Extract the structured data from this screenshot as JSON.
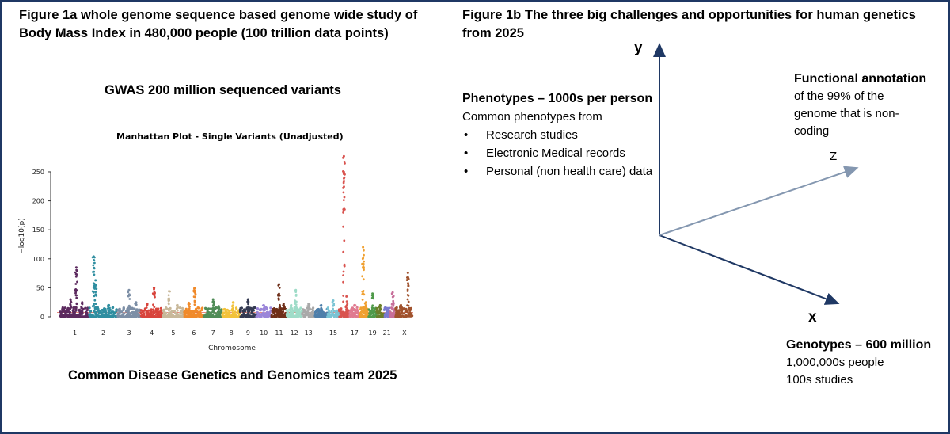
{
  "figure_1a": {
    "title": "Figure 1a whole genome sequence based genome wide study of Body Mass Index in 480,000 people (100 trillion data points)",
    "gwas_heading": "GWAS 200 million sequenced variants",
    "team_caption": "Common Disease Genetics and Genomics team 2025"
  },
  "figure_1b": {
    "title": "Figure 1b The three big challenges and opportunities for human genetics from 2025",
    "axes": {
      "y": "y",
      "x": "x",
      "z": "Z"
    },
    "phenotypes": {
      "heading": "Phenotypes – 1000s per person",
      "intro": "Common phenotypes from",
      "bullet_glyph": "•",
      "items": [
        "Research studies",
        "Electronic Medical records",
        "Personal (non health care) data"
      ]
    },
    "functional": {
      "heading": "Functional annotation",
      "body": "of the 99% of the genome that is non-coding"
    },
    "genotypes": {
      "heading": "Genotypes – 600 million",
      "line1": "1,000,000s people",
      "line2": "100s studies"
    },
    "colors": {
      "axis_dark": "#1f3864",
      "axis_z": "#8497b0",
      "frame": "#1f3864"
    }
  },
  "chart_data": {
    "type": "scatter",
    "title": "Manhattan Plot - Single Variants (Unadjusted)",
    "xlabel": "Chromosome",
    "ylabel": "−log10(p)",
    "ylim": [
      0,
      280
    ],
    "y_ticks": [
      0,
      50,
      100,
      150,
      200,
      250
    ],
    "x_tick_labels": [
      "1",
      "2",
      "3",
      "4",
      "5",
      "6",
      "7",
      "8",
      "9",
      "10",
      "11",
      "12",
      "13",
      "15",
      "17",
      "19",
      "21",
      "X"
    ],
    "chromosomes": [
      {
        "chr": "1",
        "color": "#5c2a5f",
        "peaks": [
          [
            0.55,
            85
          ],
          [
            0.35,
            30
          ],
          [
            0.75,
            25
          ]
        ]
      },
      {
        "chr": "2",
        "color": "#2f8ea0",
        "peaks": [
          [
            0.15,
            104
          ],
          [
            0.22,
            63
          ],
          [
            0.7,
            20
          ]
        ]
      },
      {
        "chr": "3",
        "color": "#7d8fa6",
        "peaks": [
          [
            0.5,
            46
          ],
          [
            0.8,
            25
          ]
        ]
      },
      {
        "chr": "4",
        "color": "#d8443c",
        "peaks": [
          [
            0.6,
            50
          ],
          [
            0.3,
            22
          ]
        ]
      },
      {
        "chr": "5",
        "color": "#c8b89a",
        "peaks": [
          [
            0.3,
            44
          ],
          [
            0.7,
            20
          ]
        ]
      },
      {
        "chr": "6",
        "color": "#f08a2a",
        "peaks": [
          [
            0.55,
            49
          ],
          [
            0.25,
            24
          ]
        ]
      },
      {
        "chr": "7",
        "color": "#4f8c57",
        "peaks": [
          [
            0.5,
            30
          ],
          [
            0.8,
            18
          ]
        ]
      },
      {
        "chr": "8",
        "color": "#f2c23a",
        "peaks": [
          [
            0.6,
            25
          ]
        ]
      },
      {
        "chr": "9",
        "color": "#343a52",
        "peaks": [
          [
            0.5,
            30
          ]
        ]
      },
      {
        "chr": "10",
        "color": "#9b86d9",
        "peaks": [
          [
            0.5,
            20
          ]
        ]
      },
      {
        "chr": "11",
        "color": "#6e2e18",
        "peaks": [
          [
            0.5,
            56
          ],
          [
            0.8,
            22
          ]
        ]
      },
      {
        "chr": "12",
        "color": "#9fdcc8",
        "peaks": [
          [
            0.6,
            46
          ],
          [
            0.3,
            20
          ]
        ]
      },
      {
        "chr": "13",
        "color": "#a9a9a9",
        "peaks": [
          [
            0.5,
            22
          ]
        ]
      },
      {
        "chr": "14",
        "color": "#4e7faa",
        "peaks": [
          [
            0.5,
            20
          ]
        ]
      },
      {
        "chr": "15",
        "color": "#7ac4d4",
        "peaks": [
          [
            0.5,
            28
          ]
        ]
      },
      {
        "chr": "16",
        "color": "#d9534f",
        "peaks": [
          [
            0.45,
            277
          ],
          [
            0.7,
            35
          ]
        ]
      },
      {
        "chr": "17",
        "color": "#e07a90",
        "peaks": [
          [
            0.5,
            20
          ]
        ]
      },
      {
        "chr": "18",
        "color": "#f0a030",
        "peaks": [
          [
            0.4,
            120
          ],
          [
            0.7,
            25
          ]
        ]
      },
      {
        "chr": "19",
        "color": "#4f9a4a",
        "peaks": [
          [
            0.5,
            40
          ]
        ]
      },
      {
        "chr": "20",
        "color": "#6b7f2a",
        "peaks": [
          [
            0.5,
            20
          ]
        ]
      },
      {
        "chr": "21",
        "color": "#7a7ad0",
        "peaks": [
          [
            0.5,
            15
          ]
        ]
      },
      {
        "chr": "22",
        "color": "#c76f9a",
        "peaks": [
          [
            0.5,
            42
          ]
        ]
      },
      {
        "chr": "X",
        "color": "#a0522d",
        "peaks": [
          [
            0.7,
            76
          ],
          [
            0.3,
            20
          ]
        ]
      }
    ],
    "grid": false,
    "legend": "none"
  }
}
